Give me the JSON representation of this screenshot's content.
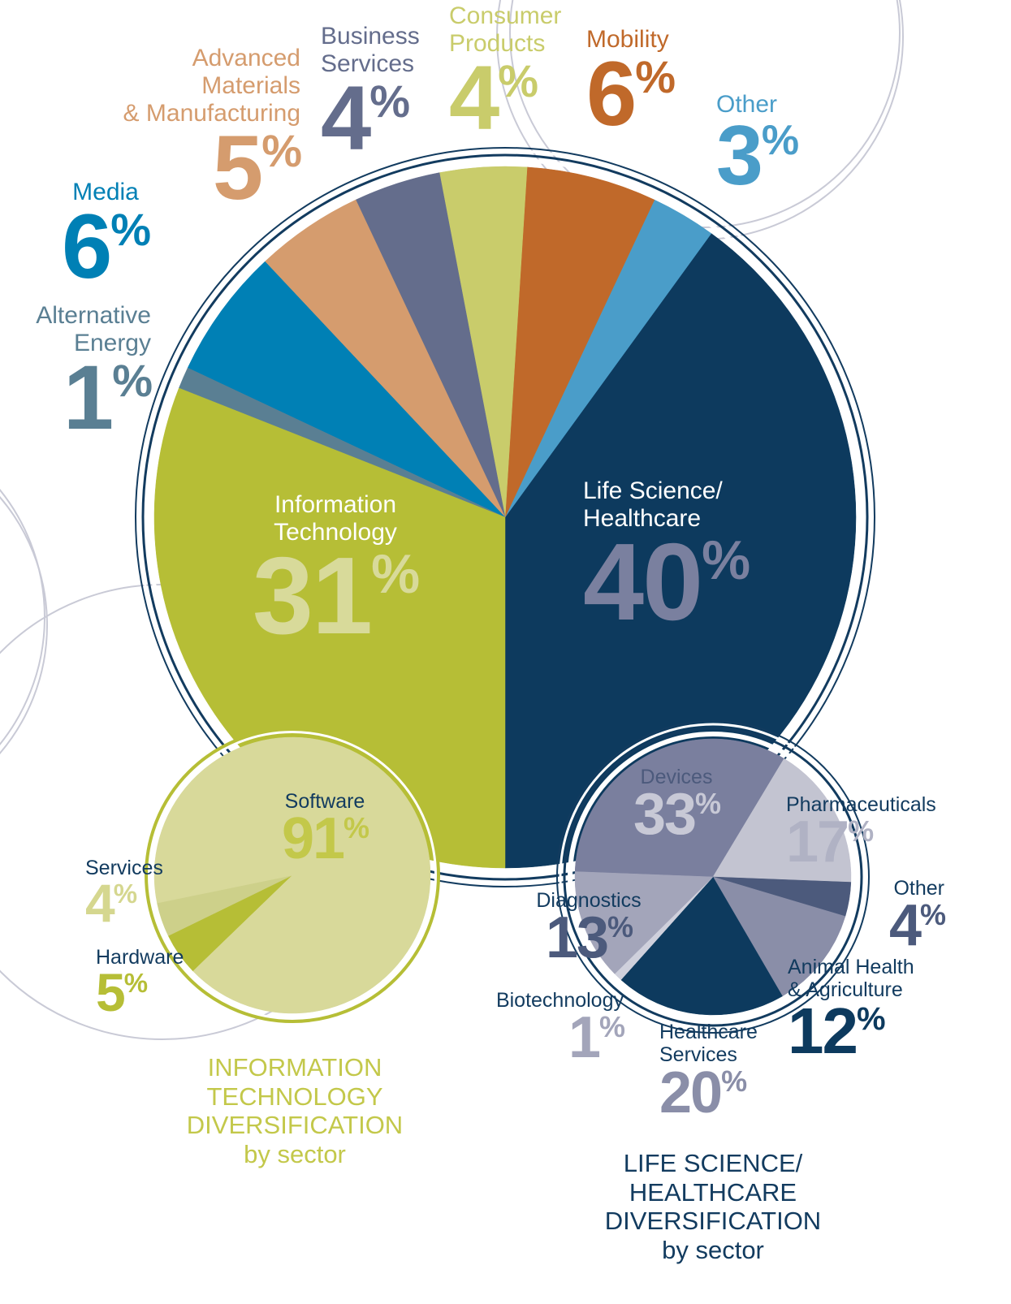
{
  "chart_data": [
    {
      "type": "pie",
      "categories": [
        "Life Science/\nHealthcare",
        "Other",
        "Mobility",
        "Consumer\nProducts",
        "Business\nServices",
        "Advanced\nMaterials\n& Manufacturing",
        "Media",
        "Alternative\nEnergy",
        "Information\nTechnology"
      ],
      "values": [
        40,
        3,
        6,
        4,
        4,
        5,
        6,
        1,
        31
      ],
      "value_labels": [
        "40%",
        "3%",
        "6%",
        "4%",
        "4%",
        "5%",
        "6%",
        "1%",
        "31%"
      ],
      "colors": [
        "#0d3a5e",
        "#4a9dc9",
        "#c0692a",
        "#c9cc6b",
        "#646d8c",
        "#d59c6e",
        "#0080b5",
        "#5a7f93",
        "#b6be36"
      ]
    },
    {
      "type": "pie",
      "title": "INFORMATION\nTECHNOLOGY\nDIVERSIFICATION\nby sector",
      "categories": [
        "Hardware",
        "Services",
        "Software"
      ],
      "values": [
        5,
        4,
        91
      ],
      "value_labels": [
        "5%",
        "4%",
        "91%"
      ],
      "colors": [
        "#b6be36",
        "#cdd08a",
        "#d8d99a"
      ]
    },
    {
      "type": "pie",
      "title": "LIFE SCIENCE/\nHEALTHCARE\nDIVERSIFICATION\nby sector",
      "categories": [
        "Devices",
        "Pharmaceuticals",
        "Other",
        "Animal Health\n& Agriculture",
        "Healthcare\nServices",
        "Biotechnology",
        "Diagnostics"
      ],
      "values": [
        33,
        17,
        4,
        12,
        20,
        1,
        13
      ],
      "value_labels": [
        "33%",
        "17%",
        "4%",
        "12%",
        "20%",
        "1%",
        "13%"
      ],
      "colors": [
        "#7a7f9e",
        "#c3c4d1",
        "#4c5a7c",
        "#8a8ea8",
        "#0d3a5e",
        "#cfd0dc",
        "#a3a5ba"
      ]
    }
  ]
}
